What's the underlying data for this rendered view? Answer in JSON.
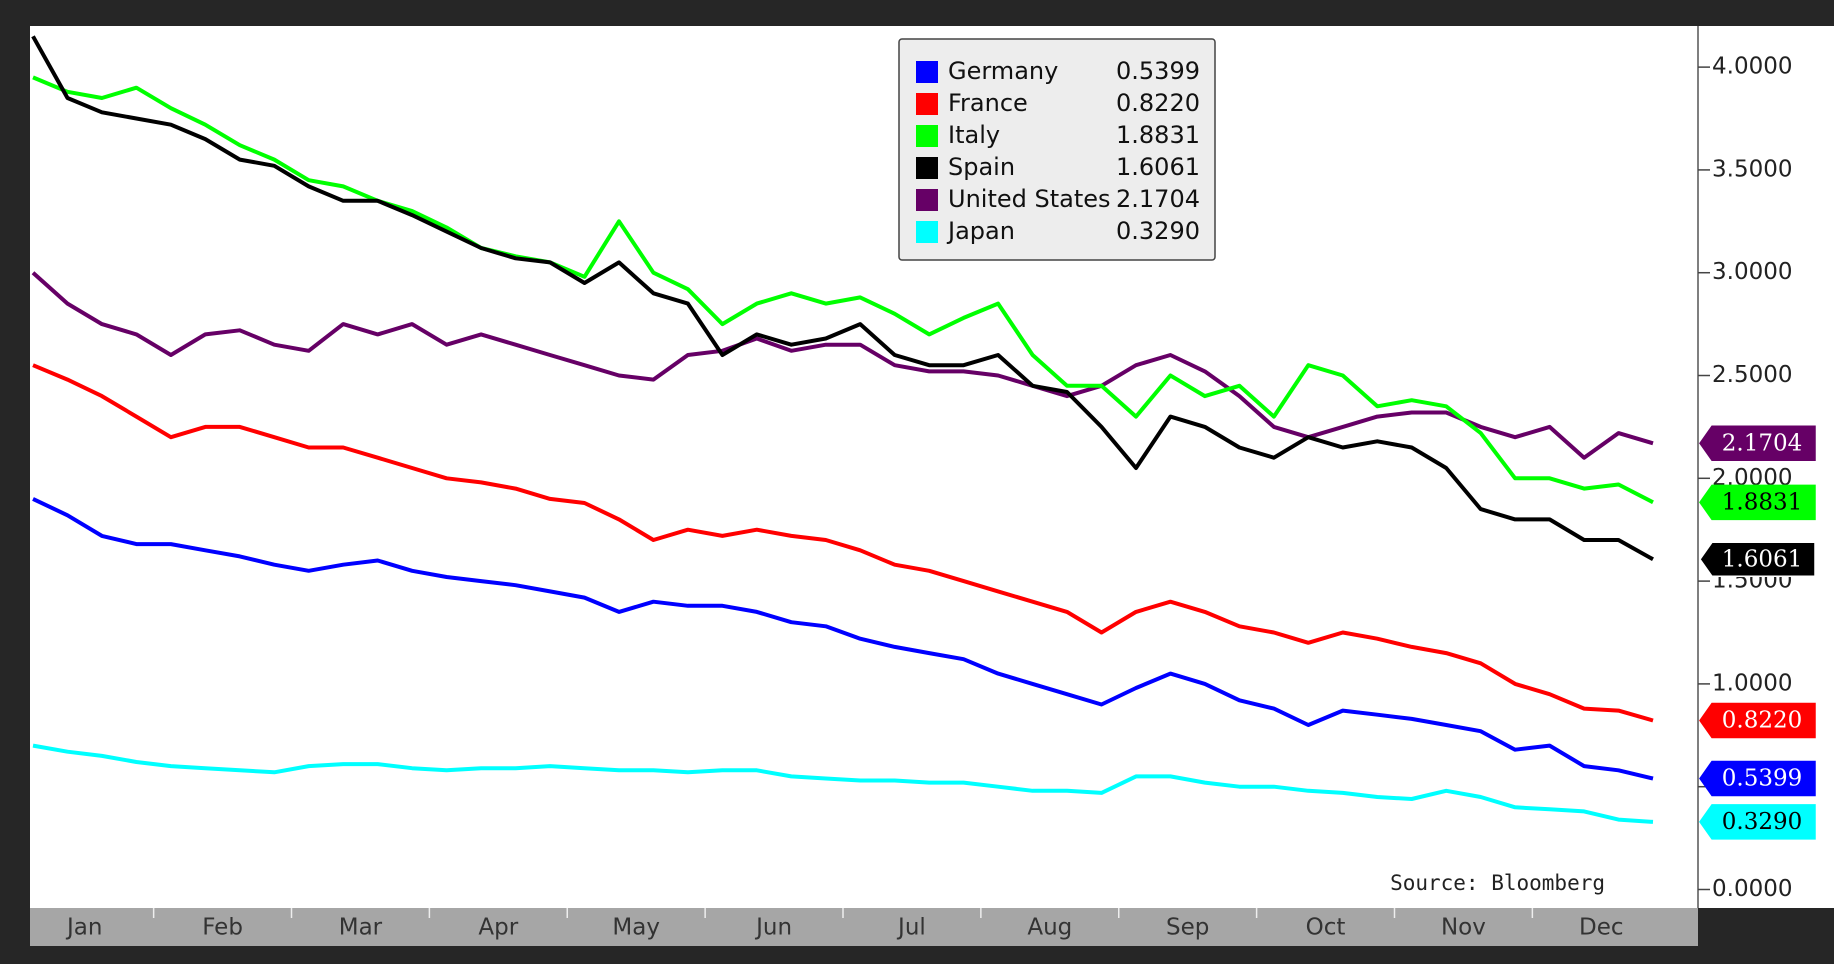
{
  "chart_data": {
    "type": "line",
    "source": "Source: Bloomberg",
    "categories": [
      "Jan",
      null,
      null,
      null,
      "Feb",
      null,
      null,
      null,
      "Mar",
      null,
      null,
      null,
      "Apr",
      null,
      null,
      null,
      "May",
      null,
      null,
      null,
      "Jun",
      null,
      null,
      null,
      "Jul",
      null,
      null,
      null,
      "Aug",
      null,
      null,
      null,
      "Sep",
      null,
      null,
      null,
      "Oct",
      null,
      null,
      null,
      "Nov",
      null,
      null,
      null,
      "Dec",
      null,
      null,
      null
    ],
    "ylim": [
      -0.09,
      4.2
    ],
    "yticks": [
      {
        "value": 0,
        "label": "0.0000"
      },
      {
        "value": 0.5,
        "label": "0.5000"
      },
      {
        "value": 1,
        "label": "1.0000"
      },
      {
        "value": 1.5,
        "label": "1.5000"
      },
      {
        "value": 2,
        "label": "2.0000"
      },
      {
        "value": 2.5,
        "label": "2.5000"
      },
      {
        "value": 3,
        "label": "3.0000"
      },
      {
        "value": 3.5,
        "label": "3.5000"
      },
      {
        "value": 4,
        "label": "4.0000"
      }
    ],
    "series": [
      {
        "name": "Germany",
        "color": "#0000ff",
        "last": {
          "value": 0.5399,
          "label": "0.5399"
        },
        "values": [
          1.9,
          1.82,
          1.72,
          1.68,
          1.68,
          1.65,
          1.62,
          1.58,
          1.55,
          1.58,
          1.6,
          1.55,
          1.52,
          1.5,
          1.48,
          1.45,
          1.42,
          1.35,
          1.4,
          1.38,
          1.38,
          1.35,
          1.3,
          1.28,
          1.22,
          1.18,
          1.15,
          1.12,
          1.05,
          1.0,
          0.95,
          0.9,
          0.98,
          1.05,
          1.0,
          0.92,
          0.88,
          0.8,
          0.87,
          0.85,
          0.83,
          0.8,
          0.77,
          0.68,
          0.7,
          0.6,
          0.58,
          0.5399
        ]
      },
      {
        "name": "France",
        "color": "#ff0000",
        "last": {
          "value": 0.822,
          "label": "0.8220"
        },
        "values": [
          2.55,
          2.48,
          2.4,
          2.3,
          2.2,
          2.25,
          2.25,
          2.2,
          2.15,
          2.15,
          2.1,
          2.05,
          2.0,
          1.98,
          1.95,
          1.9,
          1.88,
          1.8,
          1.7,
          1.75,
          1.72,
          1.75,
          1.72,
          1.7,
          1.65,
          1.58,
          1.55,
          1.5,
          1.45,
          1.4,
          1.35,
          1.25,
          1.35,
          1.4,
          1.35,
          1.28,
          1.25,
          1.2,
          1.25,
          1.22,
          1.18,
          1.15,
          1.1,
          1.0,
          0.95,
          0.88,
          0.87,
          0.822
        ]
      },
      {
        "name": "Italy",
        "color": "#00ff00",
        "last": {
          "value": 1.8831,
          "label": "1.8831"
        },
        "values": [
          3.95,
          3.88,
          3.85,
          3.9,
          3.8,
          3.72,
          3.62,
          3.55,
          3.45,
          3.42,
          3.35,
          3.3,
          3.22,
          3.12,
          3.08,
          3.05,
          2.98,
          3.25,
          3.0,
          2.92,
          2.75,
          2.85,
          2.9,
          2.85,
          2.88,
          2.8,
          2.7,
          2.78,
          2.85,
          2.6,
          2.45,
          2.45,
          2.3,
          2.5,
          2.4,
          2.45,
          2.3,
          2.55,
          2.5,
          2.35,
          2.38,
          2.35,
          2.22,
          2.0,
          2.0,
          1.95,
          1.97,
          1.8831
        ]
      },
      {
        "name": "Spain",
        "color": "#000000",
        "last": {
          "value": 1.6061,
          "label": "1.6061"
        },
        "values": [
          4.15,
          3.85,
          3.78,
          3.75,
          3.72,
          3.65,
          3.55,
          3.52,
          3.42,
          3.35,
          3.35,
          3.28,
          3.2,
          3.12,
          3.07,
          3.05,
          2.95,
          3.05,
          2.9,
          2.85,
          2.6,
          2.7,
          2.65,
          2.68,
          2.75,
          2.6,
          2.55,
          2.55,
          2.6,
          2.45,
          2.42,
          2.25,
          2.05,
          2.3,
          2.25,
          2.15,
          2.1,
          2.2,
          2.15,
          2.18,
          2.15,
          2.05,
          1.85,
          1.8,
          1.8,
          1.7,
          1.7,
          1.6061
        ]
      },
      {
        "name": "United States",
        "color": "#660066",
        "last": {
          "value": 2.1704,
          "label": "2.1704"
        },
        "values": [
          3.0,
          2.85,
          2.75,
          2.7,
          2.6,
          2.7,
          2.72,
          2.65,
          2.62,
          2.75,
          2.7,
          2.75,
          2.65,
          2.7,
          2.65,
          2.6,
          2.55,
          2.5,
          2.48,
          2.6,
          2.62,
          2.68,
          2.62,
          2.65,
          2.65,
          2.55,
          2.52,
          2.52,
          2.5,
          2.45,
          2.4,
          2.45,
          2.55,
          2.6,
          2.52,
          2.4,
          2.25,
          2.2,
          2.25,
          2.3,
          2.32,
          2.32,
          2.25,
          2.2,
          2.25,
          2.1,
          2.22,
          2.1704
        ]
      },
      {
        "name": "Japan",
        "color": "#00ffff",
        "last": {
          "value": 0.329,
          "label": "0.3290"
        },
        "values": [
          0.7,
          0.67,
          0.65,
          0.62,
          0.6,
          0.59,
          0.58,
          0.57,
          0.6,
          0.61,
          0.61,
          0.59,
          0.58,
          0.59,
          0.59,
          0.6,
          0.59,
          0.58,
          0.58,
          0.57,
          0.58,
          0.58,
          0.55,
          0.54,
          0.53,
          0.53,
          0.52,
          0.52,
          0.5,
          0.48,
          0.48,
          0.47,
          0.55,
          0.55,
          0.52,
          0.5,
          0.5,
          0.48,
          0.47,
          0.45,
          0.44,
          0.48,
          0.45,
          0.4,
          0.39,
          0.38,
          0.34,
          0.329
        ]
      }
    ]
  }
}
